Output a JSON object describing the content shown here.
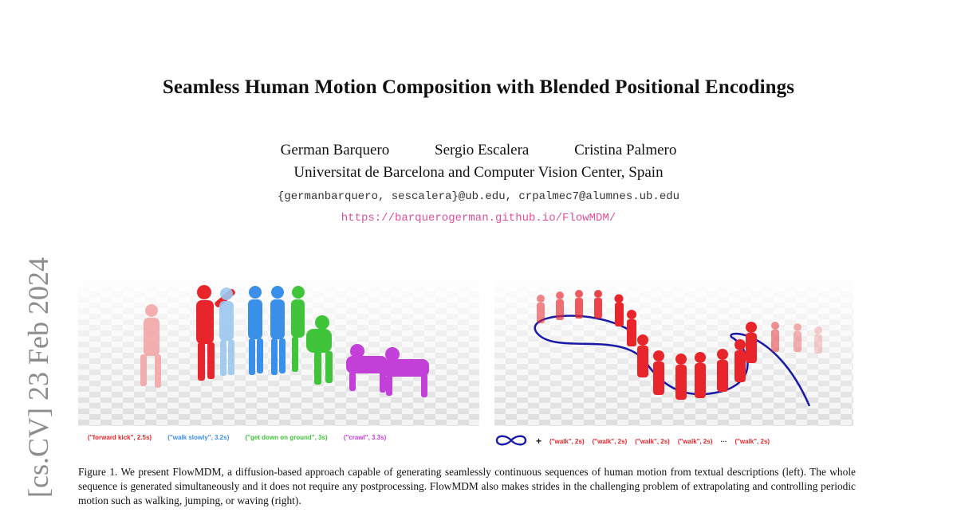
{
  "paper": {
    "title": "Seamless Human Motion Composition with Blended Positional Encodings",
    "authors": [
      "German Barquero",
      "Sergio Escalera",
      "Cristina Palmero"
    ],
    "affiliation": "Universitat de Barcelona and Computer Vision Center, Spain",
    "emails": "{germanbarquero, sescalera}@ub.edu, crpalmec7@alumnes.ub.edu",
    "url": "https://barquerogerman.github.io/FlowMDM/",
    "arxiv_stamp": "[cs.CV]  23 Feb 2024"
  },
  "figure": {
    "left_labels": [
      {
        "text": "(\"forward kick\", 2.5s)",
        "color": "#e8252b"
      },
      {
        "text": "(\"walk slowly\", 3.2s)",
        "color": "#3a8fe8"
      },
      {
        "text": "(\"get down on ground\", 3s)",
        "color": "#3fc43a"
      },
      {
        "text": "(\"crawl\", 3.3s)",
        "color": "#c23fd8"
      }
    ],
    "right_labels": {
      "plus": "+",
      "items": [
        "(\"walk\", 2s)",
        "(\"walk\", 2s)",
        "(\"walk\", 2s)",
        "(\"walk\", 2s)"
      ],
      "ellipsis": "···",
      "last": "(\"walk\", 2s)",
      "color": "#e8252b",
      "icon": "infinity-icon",
      "icon_color": "#1a1aa8"
    },
    "caption": "Figure 1.  We present FlowMDM, a diffusion-based approach capable of generating seamlessly continuous sequences of human motion from textual descriptions (left). The whole sequence is generated simultaneously and it does not require any postprocessing. FlowMDM also makes strides in the challenging problem of extrapolating and controlling periodic motion such as walking, jumping, or waving (right)."
  }
}
